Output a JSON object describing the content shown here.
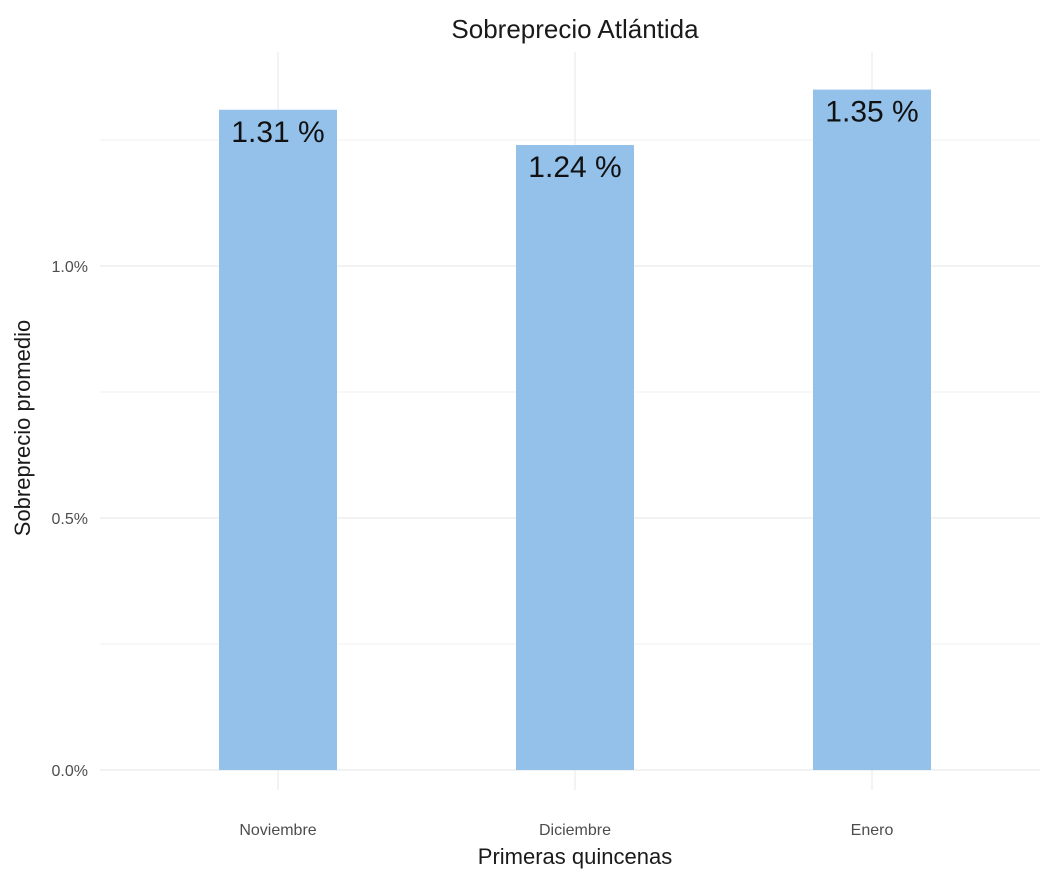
{
  "chart_data": {
    "type": "bar",
    "title": "Sobreprecio Atlántida",
    "xlabel": "Primeras quincenas",
    "ylabel": "Sobreprecio promedio",
    "categories": [
      "Noviembre",
      "Diciembre",
      "Enero"
    ],
    "values": [
      1.31,
      1.24,
      1.35
    ],
    "data_labels": [
      "1.31 %",
      "1.24 %",
      "1.35 %"
    ],
    "ylim": [
      0,
      1.35
    ],
    "y_ticks": [
      0,
      0.5,
      1.0
    ],
    "y_tick_labels": [
      "0.0%",
      "0.5%",
      "1.0%"
    ],
    "grid": true,
    "bar_color": "#94c1ea"
  }
}
